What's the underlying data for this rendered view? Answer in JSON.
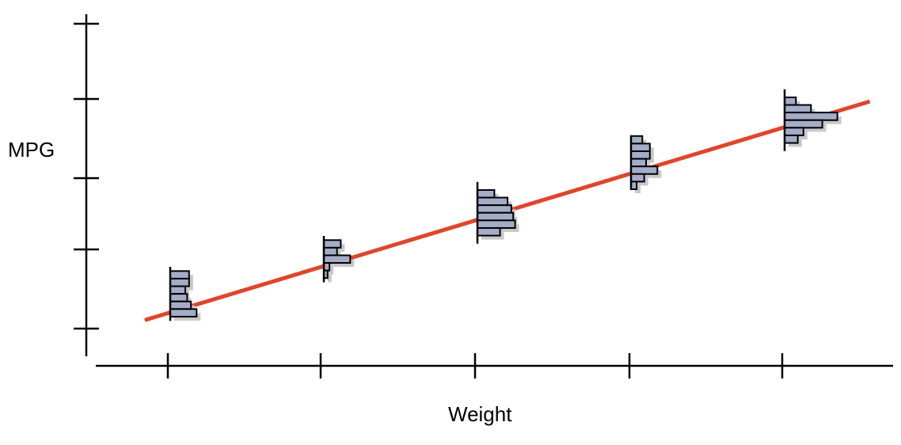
{
  "diagram": {
    "xlabel": "Weight",
    "ylabel": "MPG",
    "x_tick_count": 5,
    "y_tick_count": 5,
    "colors": {
      "axis": "#000000",
      "regression_line": "#e0452b",
      "bar_fill": "#a4acc8",
      "bar_stroke": "#000000",
      "bar_shadow": "#c8c8c8"
    },
    "regression_line": {
      "intercept": 1.2,
      "slope": 0.6
    },
    "distributions": [
      {
        "weight": 1,
        "mpg_range": [
          1.1,
          1.8
        ],
        "bin_counts": [
          0.5,
          0.5,
          0.4,
          0.45,
          0.55,
          0.7
        ]
      },
      {
        "weight": 2,
        "mpg_range": [
          1.6,
          2.2
        ],
        "bin_counts": [
          0.45,
          0.35,
          0.7,
          0.15,
          0.1
        ]
      },
      {
        "weight": 3,
        "mpg_range": [
          2.1,
          2.9
        ],
        "bin_counts": [
          0.45,
          0.8,
          0.9,
          0.95,
          1.0,
          0.6
        ]
      },
      {
        "weight": 4,
        "mpg_range": [
          2.8,
          3.5
        ],
        "bin_counts": [
          0.3,
          0.5,
          0.5,
          0.4,
          0.7,
          0.35,
          0.15
        ]
      },
      {
        "weight": 5,
        "mpg_range": [
          3.3,
          4.1
        ],
        "bin_counts": [
          0.3,
          0.7,
          1.4,
          1.0,
          0.5,
          0.35
        ]
      }
    ]
  }
}
